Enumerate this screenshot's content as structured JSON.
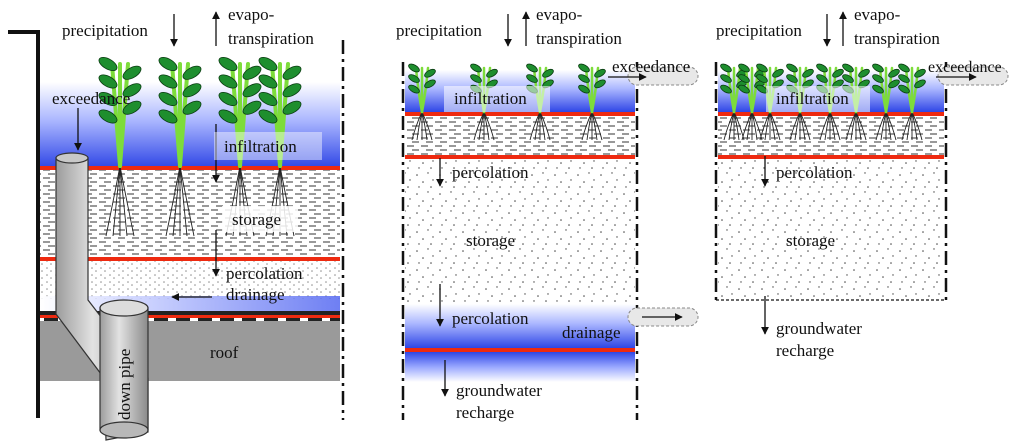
{
  "colors": {
    "water_blue": "#3a4fe0",
    "red_layer": "#ee2a10",
    "roof_gray": "#9a9a9a",
    "pipe_gray": "#c8c8c8",
    "leaf_green": "#1e8e2e",
    "stem_green": "#7ddc3a"
  },
  "icons": [
    "plant-icon",
    "down-arrow-icon",
    "up-arrow-icon",
    "right-arrow-icon",
    "left-arrow-icon",
    "outlet-pipe-icon"
  ],
  "panels": [
    {
      "id": "green-roof",
      "labels": {
        "precipitation": "precipitation",
        "evapo": "evapo-",
        "transpiration": "transpiration",
        "exceedance": "exceedance",
        "infiltration": "infiltration",
        "storage": "storage",
        "percolation": "percolation",
        "drainage": "drainage",
        "roof": "roof",
        "down_pipe": "down pipe"
      }
    },
    {
      "id": "lined-bioretention",
      "labels": {
        "precipitation": "precipitation",
        "evapo": "evapo-",
        "transpiration": "transpiration",
        "exceedance": "exceedance",
        "infiltration": "infiltration",
        "percolation_top": "percolation",
        "storage": "storage",
        "percolation_bottom": "percolation",
        "drainage": "drainage",
        "groundwater": "groundwater",
        "recharge": "recharge"
      }
    },
    {
      "id": "unlined-bioretention",
      "labels": {
        "precipitation": "precipitation",
        "evapo": "evapo-",
        "transpiration": "transpiration",
        "exceedance": "exceedance",
        "infiltration": "infiltration",
        "percolation": "percolation",
        "storage": "storage",
        "groundwater": "groundwater",
        "recharge": "recharge"
      }
    }
  ]
}
